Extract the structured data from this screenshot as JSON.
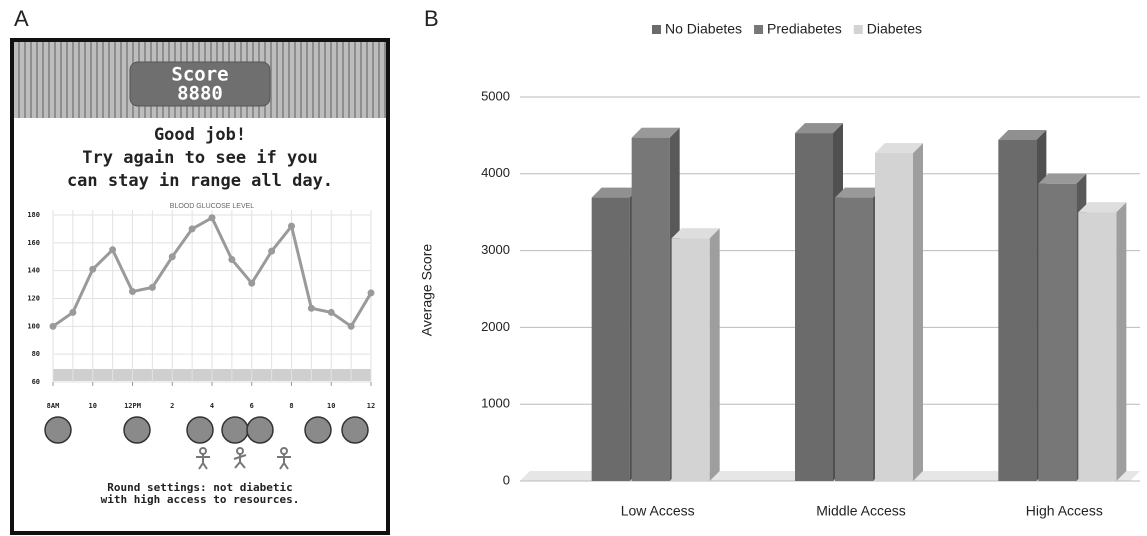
{
  "panels": [
    "A",
    "B"
  ],
  "game": {
    "score_label": "Score",
    "score": "8880",
    "message": [
      "Good job!",
      "Try again to see if you",
      "can stay in range all day."
    ],
    "settings": [
      "Round settings: not diabetic",
      "with high access to resources."
    ]
  },
  "chart_data": [
    {
      "type": "line",
      "title": "BLOOD GLUCOSE LEVEL",
      "color": "#9a9a9a",
      "x": [
        8,
        9,
        10,
        11,
        12,
        13,
        14,
        15,
        16,
        17,
        18,
        19,
        20,
        21,
        22,
        23,
        24
      ],
      "values": [
        100,
        110,
        141,
        155,
        125,
        128,
        150,
        170,
        178,
        148,
        131,
        154,
        172,
        113,
        110,
        100,
        124
      ],
      "xlim": [
        8,
        24
      ],
      "xticks": [
        {
          "value": 8,
          "label": "8AM"
        },
        10,
        {
          "value": 12,
          "label": "12PM"
        },
        {
          "value": 14,
          "label": "2"
        },
        {
          "value": 16,
          "label": "4"
        },
        {
          "value": 18,
          "label": "6"
        },
        {
          "value": 20,
          "label": "8"
        },
        {
          "value": 22,
          "label": "10"
        },
        {
          "value": 24,
          "label": "12"
        }
      ],
      "ylim": [
        60,
        180
      ],
      "yticks": [
        60,
        80,
        100,
        120,
        140,
        160,
        180
      ],
      "grid": true
    },
    {
      "type": "bar",
      "ylabel": "Average Score",
      "categories": [
        "Low Access",
        "Middle Access",
        "High Access"
      ],
      "series": [
        {
          "name": "No Diabetes",
          "color": "#6b6b6b",
          "values": [
            3690,
            4530,
            4440
          ]
        },
        {
          "name": "Prediabetes",
          "color": "#777777",
          "values": [
            4470,
            3690,
            3870
          ]
        },
        {
          "name": "Diabetes",
          "color": "#d3d3d3",
          "values": [
            3160,
            4270,
            3500
          ]
        }
      ],
      "ylim": [
        0,
        5000
      ],
      "yticks": [
        0,
        1000,
        2000,
        3000,
        4000,
        5000
      ],
      "grid": true,
      "legend": "top"
    }
  ]
}
